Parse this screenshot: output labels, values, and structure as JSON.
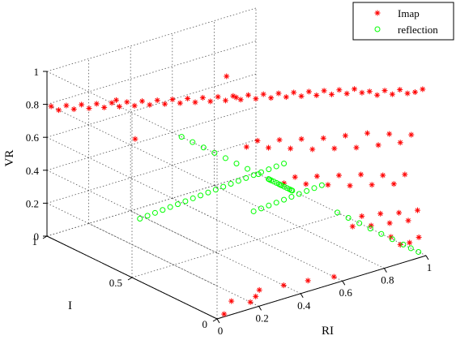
{
  "chart_data": {
    "type": "scatter",
    "projection": "3d",
    "grid": true,
    "legend_placement": "top-right",
    "axes": {
      "x": {
        "label": "RI",
        "range": [
          0,
          1
        ],
        "ticks": [
          "0",
          "0.2",
          "0.4",
          "0.6",
          "0.8",
          "1"
        ]
      },
      "y": {
        "label": "I",
        "range": [
          0,
          1
        ],
        "ticks": [
          "0",
          "0.5",
          "1"
        ]
      },
      "z": {
        "label": "VR",
        "range": [
          0,
          1
        ],
        "ticks": [
          "0",
          "0.2",
          "0.4",
          "0.6",
          "0.8",
          "1"
        ]
      }
    },
    "series": [
      {
        "name": "Imap",
        "marker": "asterisk",
        "color": "#ff0000",
        "points": [
          [
            1.0,
            0.02,
            1.0
          ],
          [
            0.98,
            0.04,
            0.98
          ],
          [
            0.96,
            0.06,
            0.97
          ],
          [
            0.94,
            0.08,
            0.99
          ],
          [
            0.92,
            0.1,
            0.96
          ],
          [
            0.9,
            0.12,
            0.98
          ],
          [
            0.88,
            0.14,
            0.95
          ],
          [
            0.86,
            0.16,
            0.97
          ],
          [
            0.84,
            0.18,
            0.96
          ],
          [
            0.82,
            0.2,
            0.98
          ],
          [
            0.8,
            0.22,
            0.95
          ],
          [
            0.78,
            0.24,
            0.97
          ],
          [
            0.76,
            0.26,
            0.94
          ],
          [
            0.74,
            0.28,
            0.96
          ],
          [
            0.72,
            0.3,
            0.93
          ],
          [
            0.7,
            0.32,
            0.95
          ],
          [
            0.68,
            0.34,
            0.92
          ],
          [
            0.66,
            0.36,
            0.94
          ],
          [
            0.64,
            0.38,
            0.91
          ],
          [
            0.62,
            0.4,
            0.93
          ],
          [
            0.6,
            0.42,
            0.9
          ],
          [
            0.58,
            0.44,
            0.92
          ],
          [
            0.56,
            0.46,
            0.89
          ],
          [
            0.54,
            0.48,
            0.91
          ],
          [
            0.52,
            0.5,
            0.88
          ],
          [
            0.5,
            0.52,
            0.9
          ],
          [
            0.48,
            0.54,
            0.87
          ],
          [
            0.46,
            0.56,
            0.89
          ],
          [
            0.44,
            0.58,
            0.86
          ],
          [
            0.42,
            0.6,
            0.88
          ],
          [
            0.4,
            0.62,
            0.85
          ],
          [
            0.38,
            0.64,
            0.87
          ],
          [
            0.36,
            0.66,
            0.84
          ],
          [
            0.34,
            0.68,
            0.86
          ],
          [
            0.32,
            0.7,
            0.83
          ],
          [
            0.3,
            0.72,
            0.85
          ],
          [
            0.28,
            0.74,
            0.82
          ],
          [
            0.26,
            0.76,
            0.84
          ],
          [
            0.24,
            0.78,
            0.81
          ],
          [
            0.22,
            0.8,
            0.83
          ],
          [
            0.2,
            0.82,
            0.8
          ],
          [
            0.18,
            0.84,
            0.82
          ],
          [
            0.16,
            0.86,
            0.79
          ],
          [
            0.14,
            0.88,
            0.81
          ],
          [
            0.12,
            0.9,
            0.78
          ],
          [
            0.1,
            0.92,
            0.8
          ],
          [
            0.08,
            0.94,
            0.77
          ],
          [
            0.06,
            0.96,
            0.79
          ],
          [
            0.04,
            0.98,
            0.76
          ],
          [
            0.02,
            1.0,
            0.78
          ],
          [
            0.97,
            0.05,
            0.72
          ],
          [
            0.95,
            0.09,
            0.66
          ],
          [
            0.93,
            0.13,
            0.7
          ],
          [
            0.91,
            0.17,
            0.62
          ],
          [
            0.89,
            0.21,
            0.68
          ],
          [
            0.87,
            0.25,
            0.58
          ],
          [
            0.85,
            0.29,
            0.64
          ],
          [
            0.83,
            0.33,
            0.55
          ],
          [
            0.81,
            0.37,
            0.6
          ],
          [
            0.79,
            0.41,
            0.52
          ],
          [
            0.77,
            0.45,
            0.57
          ],
          [
            0.75,
            0.49,
            0.5
          ],
          [
            0.73,
            0.53,
            0.54
          ],
          [
            0.71,
            0.57,
            0.48
          ],
          [
            0.69,
            0.61,
            0.51
          ],
          [
            0.67,
            0.65,
            0.46
          ],
          [
            0.98,
            0.1,
            0.45
          ],
          [
            0.96,
            0.14,
            0.38
          ],
          [
            0.94,
            0.18,
            0.42
          ],
          [
            0.92,
            0.22,
            0.35
          ],
          [
            0.9,
            0.26,
            0.4
          ],
          [
            0.88,
            0.3,
            0.32
          ],
          [
            0.86,
            0.34,
            0.37
          ],
          [
            0.84,
            0.38,
            0.3
          ],
          [
            0.82,
            0.42,
            0.34
          ],
          [
            0.8,
            0.46,
            0.28
          ],
          [
            0.78,
            0.5,
            0.31
          ],
          [
            0.76,
            0.54,
            0.26
          ],
          [
            1.0,
            0.05,
            0.25
          ],
          [
            0.98,
            0.08,
            0.18
          ],
          [
            0.96,
            0.11,
            0.22
          ],
          [
            0.94,
            0.14,
            0.15
          ],
          [
            0.92,
            0.17,
            0.2
          ],
          [
            0.9,
            0.2,
            0.12
          ],
          [
            0.88,
            0.23,
            0.17
          ],
          [
            0.86,
            0.26,
            0.1
          ],
          [
            0.99,
            0.03,
            0.1
          ],
          [
            0.97,
            0.06,
            0.06
          ],
          [
            0.95,
            0.09,
            0.04
          ],
          [
            0.93,
            0.12,
            0.08
          ],
          [
            0.6,
            0.05,
            0.0
          ],
          [
            0.5,
            0.08,
            0.0
          ],
          [
            0.4,
            0.1,
            0.0
          ],
          [
            0.3,
            0.12,
            0.0
          ],
          [
            0.25,
            0.08,
            0.0
          ],
          [
            0.2,
            0.05,
            0.0
          ],
          [
            0.15,
            0.1,
            0.0
          ],
          [
            0.05,
            0.02,
            0.0
          ],
          [
            0.3,
            0.85,
            0.55
          ],
          [
            0.55,
            0.62,
            0.95
          ],
          [
            0.58,
            0.6,
            0.82
          ],
          [
            0.25,
            0.9,
            0.78
          ]
        ]
      },
      {
        "name": "reflection",
        "marker": "circle",
        "color": "#00ff00",
        "points": [
          [
            0.6,
            0.3,
            0.4
          ],
          [
            0.62,
            0.32,
            0.38
          ],
          [
            0.58,
            0.34,
            0.42
          ],
          [
            0.64,
            0.36,
            0.36
          ],
          [
            0.56,
            0.38,
            0.44
          ],
          [
            0.66,
            0.4,
            0.34
          ],
          [
            0.54,
            0.42,
            0.46
          ],
          [
            0.68,
            0.44,
            0.32
          ],
          [
            0.52,
            0.46,
            0.48
          ],
          [
            0.7,
            0.48,
            0.3
          ],
          [
            0.5,
            0.5,
            0.5
          ],
          [
            0.72,
            0.52,
            0.28
          ],
          [
            0.48,
            0.54,
            0.52
          ],
          [
            0.74,
            0.56,
            0.26
          ],
          [
            0.46,
            0.58,
            0.54
          ],
          [
            0.76,
            0.6,
            0.24
          ],
          [
            0.44,
            0.62,
            0.56
          ],
          [
            0.78,
            0.64,
            0.22
          ],
          [
            0.42,
            0.66,
            0.58
          ],
          [
            0.8,
            0.68,
            0.2
          ],
          [
            0.4,
            0.7,
            0.6
          ],
          [
            0.82,
            0.3,
            0.18
          ],
          [
            0.84,
            0.26,
            0.16
          ],
          [
            0.86,
            0.22,
            0.14
          ],
          [
            0.88,
            0.18,
            0.12
          ],
          [
            0.9,
            0.14,
            0.1
          ],
          [
            0.92,
            0.1,
            0.08
          ],
          [
            0.94,
            0.06,
            0.06
          ],
          [
            0.96,
            0.04,
            0.04
          ],
          [
            0.98,
            0.02,
            0.02
          ],
          [
            0.65,
            0.45,
            0.45
          ],
          [
            0.67,
            0.43,
            0.47
          ],
          [
            0.63,
            0.47,
            0.43
          ],
          [
            0.61,
            0.49,
            0.41
          ],
          [
            0.59,
            0.51,
            0.39
          ],
          [
            0.57,
            0.53,
            0.37
          ],
          [
            0.55,
            0.55,
            0.35
          ],
          [
            0.53,
            0.57,
            0.33
          ],
          [
            0.51,
            0.59,
            0.31
          ],
          [
            0.49,
            0.61,
            0.29
          ],
          [
            0.47,
            0.63,
            0.27
          ],
          [
            0.45,
            0.65,
            0.25
          ],
          [
            0.43,
            0.67,
            0.23
          ],
          [
            0.41,
            0.69,
            0.21
          ],
          [
            0.39,
            0.71,
            0.19
          ],
          [
            0.37,
            0.73,
            0.17
          ],
          [
            0.35,
            0.75,
            0.15
          ],
          [
            0.33,
            0.77,
            0.13
          ],
          [
            0.31,
            0.79,
            0.11
          ],
          [
            0.29,
            0.81,
            0.09
          ],
          [
            0.75,
            0.35,
            0.33
          ],
          [
            0.77,
            0.33,
            0.35
          ],
          [
            0.73,
            0.37,
            0.31
          ],
          [
            0.71,
            0.39,
            0.29
          ],
          [
            0.69,
            0.41,
            0.27
          ],
          [
            0.67,
            0.43,
            0.25
          ],
          [
            0.65,
            0.45,
            0.23
          ],
          [
            0.63,
            0.47,
            0.21
          ],
          [
            0.61,
            0.49,
            0.19
          ],
          [
            0.59,
            0.51,
            0.17
          ]
        ]
      }
    ],
    "legend": {
      "entries": [
        "Imap",
        "reflection"
      ]
    }
  }
}
